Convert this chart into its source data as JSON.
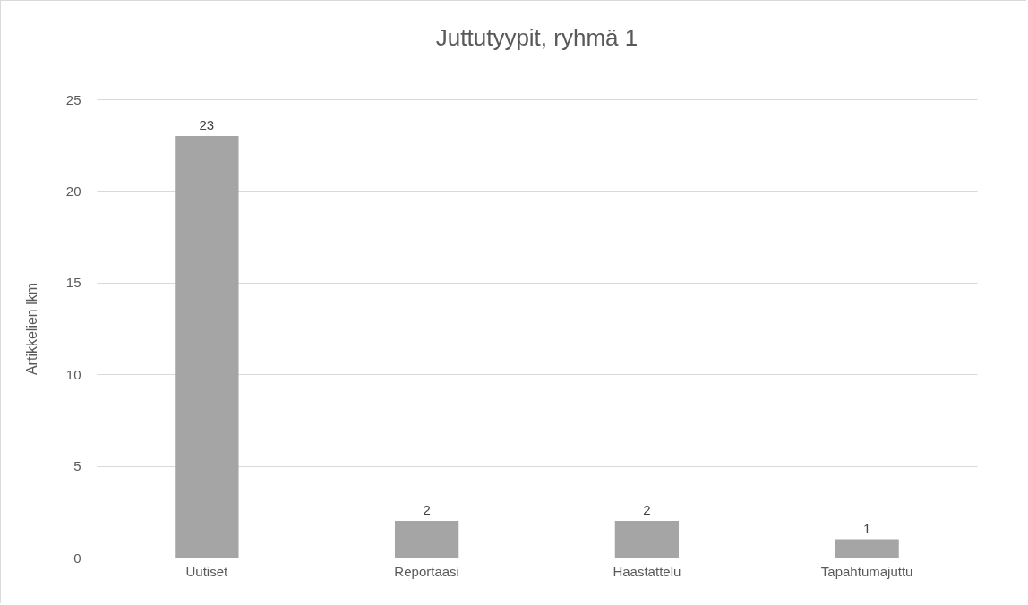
{
  "chart_data": {
    "type": "bar",
    "title": "Juttutyypit, ryhmä 1",
    "ylabel": "Artikkelien lkm",
    "categories": [
      "Uutiset",
      "Reportaasi",
      "Haastattelu",
      "Tapahtumajuttu"
    ],
    "values": [
      23,
      2,
      2,
      1
    ],
    "color": "#a5a5a5",
    "ylim": [
      0,
      25
    ],
    "yticks": [
      0,
      5,
      10,
      15,
      20,
      25
    ],
    "grid": "y",
    "data_labels": true
  }
}
